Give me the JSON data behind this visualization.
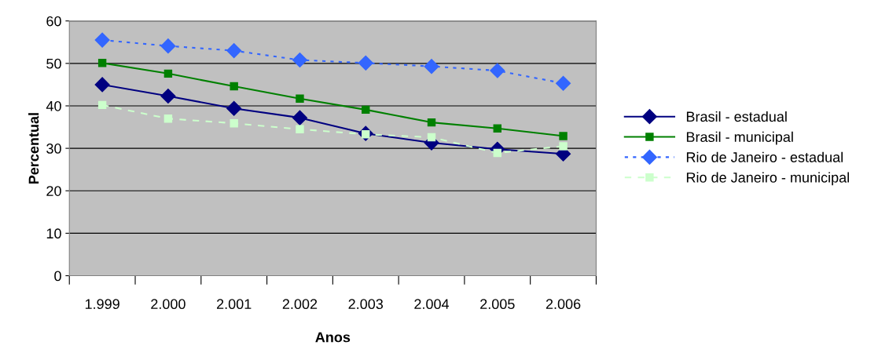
{
  "chart_data": {
    "type": "line",
    "xlabel": "Anos",
    "ylabel": "Percentual",
    "categories": [
      "1.999",
      "2.000",
      "2.001",
      "2.002",
      "2.003",
      "2.004",
      "2.005",
      "2.006"
    ],
    "ylim": [
      0,
      60
    ],
    "yticks": [
      0,
      10,
      20,
      30,
      40,
      50,
      60
    ],
    "grid": "y",
    "legend": "right",
    "series": [
      {
        "name": "Brasil - estadual",
        "color": "#000080",
        "marker": "diamond",
        "line_style": "solid",
        "values": [
          45.0,
          42.3,
          39.4,
          37.2,
          33.5,
          31.3,
          29.8,
          28.7
        ]
      },
      {
        "name": "Brasil - municipal",
        "color": "#008000",
        "marker": "square",
        "line_style": "solid",
        "values": [
          50.1,
          47.6,
          44.6,
          41.7,
          39.1,
          36.1,
          34.7,
          32.9
        ]
      },
      {
        "name": "Rio de Janeiro - estadual",
        "color": "#3366ff",
        "marker": "diamond",
        "line_style": "dotted",
        "values": [
          55.5,
          54.1,
          53.0,
          50.8,
          50.1,
          49.3,
          48.3,
          45.3
        ]
      },
      {
        "name": "Rio de Janeiro - municipal",
        "color": "#ccffcc",
        "marker": "square",
        "line_style": "dashed",
        "values": [
          40.2,
          37.0,
          35.9,
          34.5,
          33.3,
          32.6,
          28.9,
          30.5
        ]
      }
    ]
  }
}
